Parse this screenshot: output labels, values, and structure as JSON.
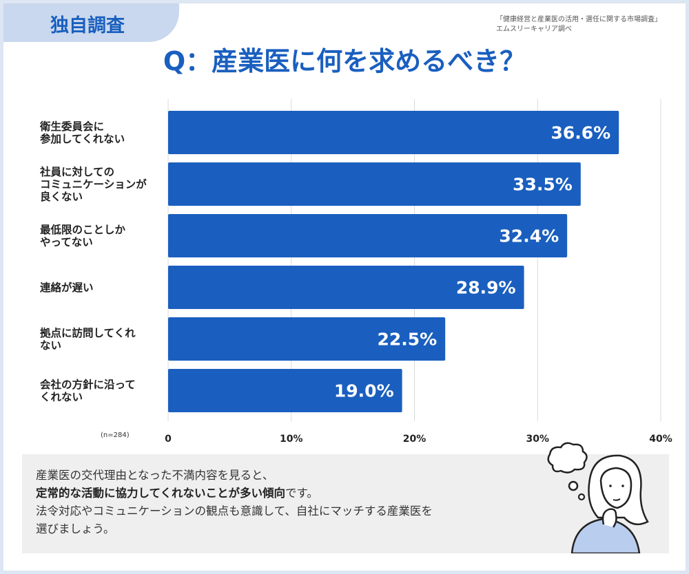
{
  "badge": "独自調査",
  "source": {
    "line1": "「健康経営と産業医の活用・選任に関する市場調査」",
    "line2": "エムスリーキャリア調べ"
  },
  "title": "Q：産業医に何を求めるべき？",
  "sample_size": "(n=284)",
  "comment": {
    "line1": "産業医の交代理由となった不満内容を見ると、",
    "line2_bold": "定常的な活動に協力してくれないことが多い傾向",
    "line2_rest": "です。",
    "line3": "法令対応やコミュニケーションの観点も意識して、自社にマッチする産業医を",
    "line4": "選びましょう。"
  },
  "colors": {
    "bar": "#1a5fbf",
    "accent": "#1a5fbf",
    "badge_bg": "#c9d8ee",
    "frame": "#dde6f3",
    "grid": "#d9d9d9"
  },
  "illustration": "thinking-woman-icon",
  "chart_data": {
    "type": "bar",
    "orientation": "horizontal",
    "categories": [
      "衛生委員会に\n参加してくれない",
      "社員に対しての\nコミュニケーションが\n良くない",
      "最低限のことしか\nやってない",
      "連絡が遅い",
      "拠点に訪問してくれ\nない",
      "会社の方針に沿って\nくれない"
    ],
    "values": [
      36.6,
      33.5,
      32.4,
      28.9,
      22.5,
      19.0
    ],
    "value_labels": [
      "36.6%",
      "33.5%",
      "32.4%",
      "28.9%",
      "22.5%",
      "19.0%"
    ],
    "xticks": [
      0,
      10,
      20,
      30,
      40
    ],
    "xtick_labels": [
      "0",
      "10%",
      "20%",
      "30%",
      "40%"
    ],
    "xlim": [
      0,
      40
    ],
    "grid": true
  }
}
